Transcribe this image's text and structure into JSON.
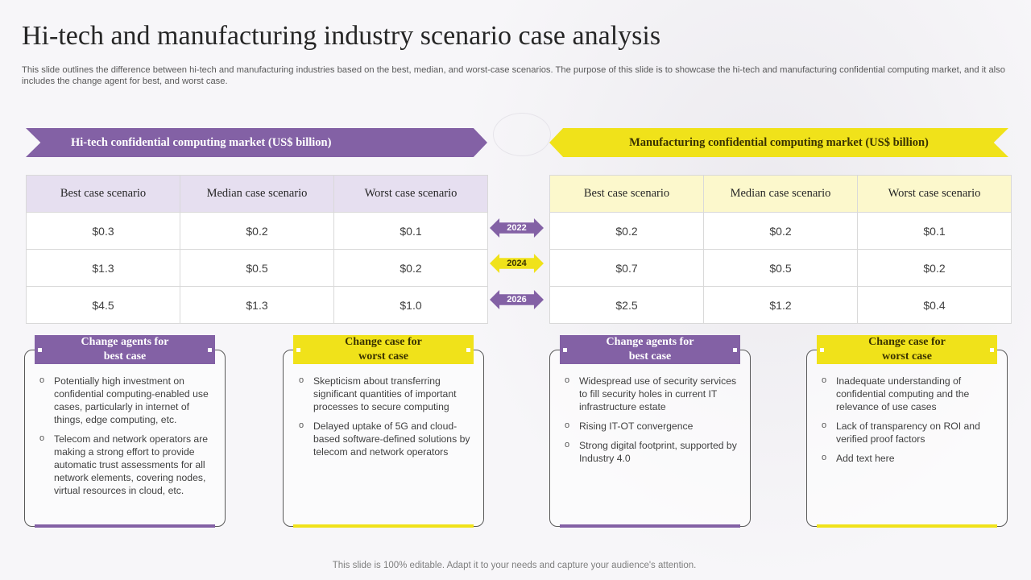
{
  "title": "Hi-tech and manufacturing industry scenario case analysis",
  "subtitle": "This slide outlines the difference between hi-tech and manufacturing industries based on the best, median, and worst-case scenarios. The purpose of this slide is to showcase the hi-tech and manufacturing confidential computing market, and it also includes the change agent for best, and worst case.",
  "left": {
    "banner": "Hi-tech confidential  computing  market (US$ billion)",
    "headers": [
      "Best case scenario",
      "Median case scenario",
      "Worst  case scenario"
    ],
    "rows": [
      [
        "$0.3",
        "$0.2",
        "$0.1"
      ],
      [
        "$1.3",
        "$0.5",
        "$0.2"
      ],
      [
        "$4.5",
        "$1.3",
        "$1.0"
      ]
    ]
  },
  "right": {
    "banner": "Manufacturing  confidential  computing  market (US$ billion)",
    "headers": [
      "Best case scenario",
      "Median case scenario",
      "Worst  case scenario"
    ],
    "rows": [
      [
        "$0.2",
        "$0.2",
        "$0.1"
      ],
      [
        "$0.7",
        "$0.5",
        "$0.2"
      ],
      [
        "$2.5",
        "$1.2",
        "$0.4"
      ]
    ]
  },
  "years": [
    "2022",
    "2024",
    "2026"
  ],
  "cards": [
    {
      "title": "Change agents for best case",
      "points": [
        "Potentially high investment  on confidential computing-enabled use cases, particularly in internet of things, edge computing, etc.",
        "Telecom and network operators are making a strong effort  to provide  automatic trust assessments for all network elements, covering nodes, virtual resources in cloud, etc."
      ]
    },
    {
      "title": "Change case for worst case",
      "points": [
        "Skepticism about transferring significant quantities of important processes to secure computing",
        "Delayed uptake of 5G and cloud-based software-defined  solutions by telecom and network operators"
      ]
    },
    {
      "title": "Change agents for best case",
      "points": [
        "Widespread use of security services to fill security holes in current IT infrastructure  estate",
        "Rising IT-OT  convergence",
        "Strong digital footprint, supported by Industry 4.0"
      ]
    },
    {
      "title": "Change case for worst case",
      "points": [
        "Inadequate  understanding of confidential computing and the relevance  of use cases",
        "Lack of transparency  on ROI and verified  proof factors",
        "Add text here"
      ]
    }
  ],
  "footer": "This slide is 100% editable. Adapt it to your needs and capture your audience's attention.",
  "colors": {
    "purple": "#8361a5",
    "yellow": "#f0e21a"
  }
}
